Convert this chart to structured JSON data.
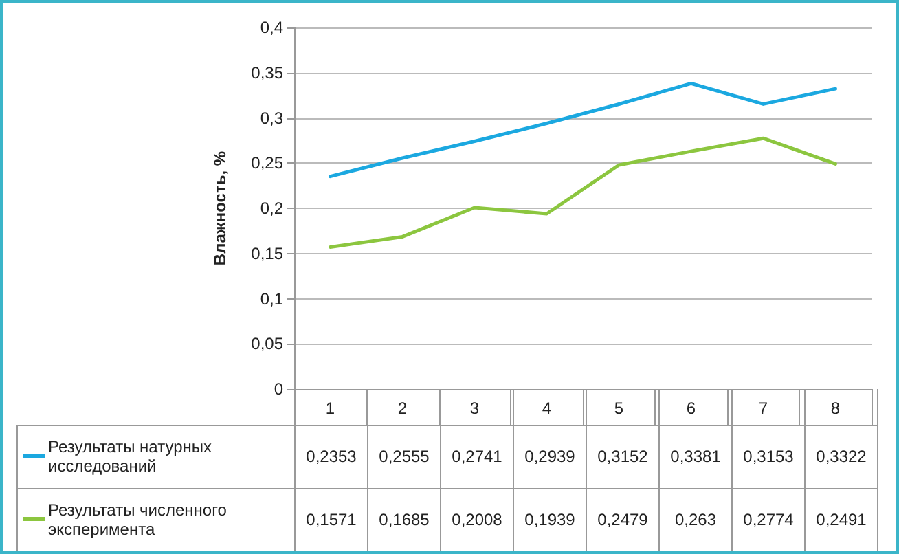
{
  "chart_data": {
    "type": "line",
    "ylabel": "Влажность, %",
    "categories": [
      "1",
      "2",
      "3",
      "4",
      "5",
      "6",
      "7",
      "8"
    ],
    "series": [
      {
        "name": "Результаты натурных исследований",
        "color": "#1ba8e0",
        "values": [
          0.2353,
          0.2555,
          0.2741,
          0.2939,
          0.3152,
          0.3381,
          0.3153,
          0.3322
        ],
        "value_labels": [
          "0,2353",
          "0,2555",
          "0,2741",
          "0,2939",
          "0,3152",
          "0,3381",
          "0,3153",
          "0,3322"
        ]
      },
      {
        "name": "Результаты численного эксперимента",
        "color": "#8cc63f",
        "values": [
          0.1571,
          0.1685,
          0.2008,
          0.1939,
          0.2479,
          0.263,
          0.2774,
          0.2491
        ],
        "value_labels": [
          "0,1571",
          "0,1685",
          "0,2008",
          "0,1939",
          "0,2479",
          "0,263",
          "0,2774",
          "0,2491"
        ]
      }
    ],
    "ylim": [
      0,
      0.4
    ],
    "yticks": [
      {
        "value": 0,
        "label": "0"
      },
      {
        "value": 0.05,
        "label": "0,05"
      },
      {
        "value": 0.1,
        "label": "0,1"
      },
      {
        "value": 0.15,
        "label": "0,15"
      },
      {
        "value": 0.2,
        "label": "0,2"
      },
      {
        "value": 0.25,
        "label": "0,25"
      },
      {
        "value": 0.3,
        "label": "0,3"
      },
      {
        "value": 0.35,
        "label": "0,35"
      },
      {
        "value": 0.4,
        "label": "0,4"
      }
    ],
    "grid": "y",
    "legend": "bottom",
    "marker": "none",
    "line_style": "solid"
  }
}
